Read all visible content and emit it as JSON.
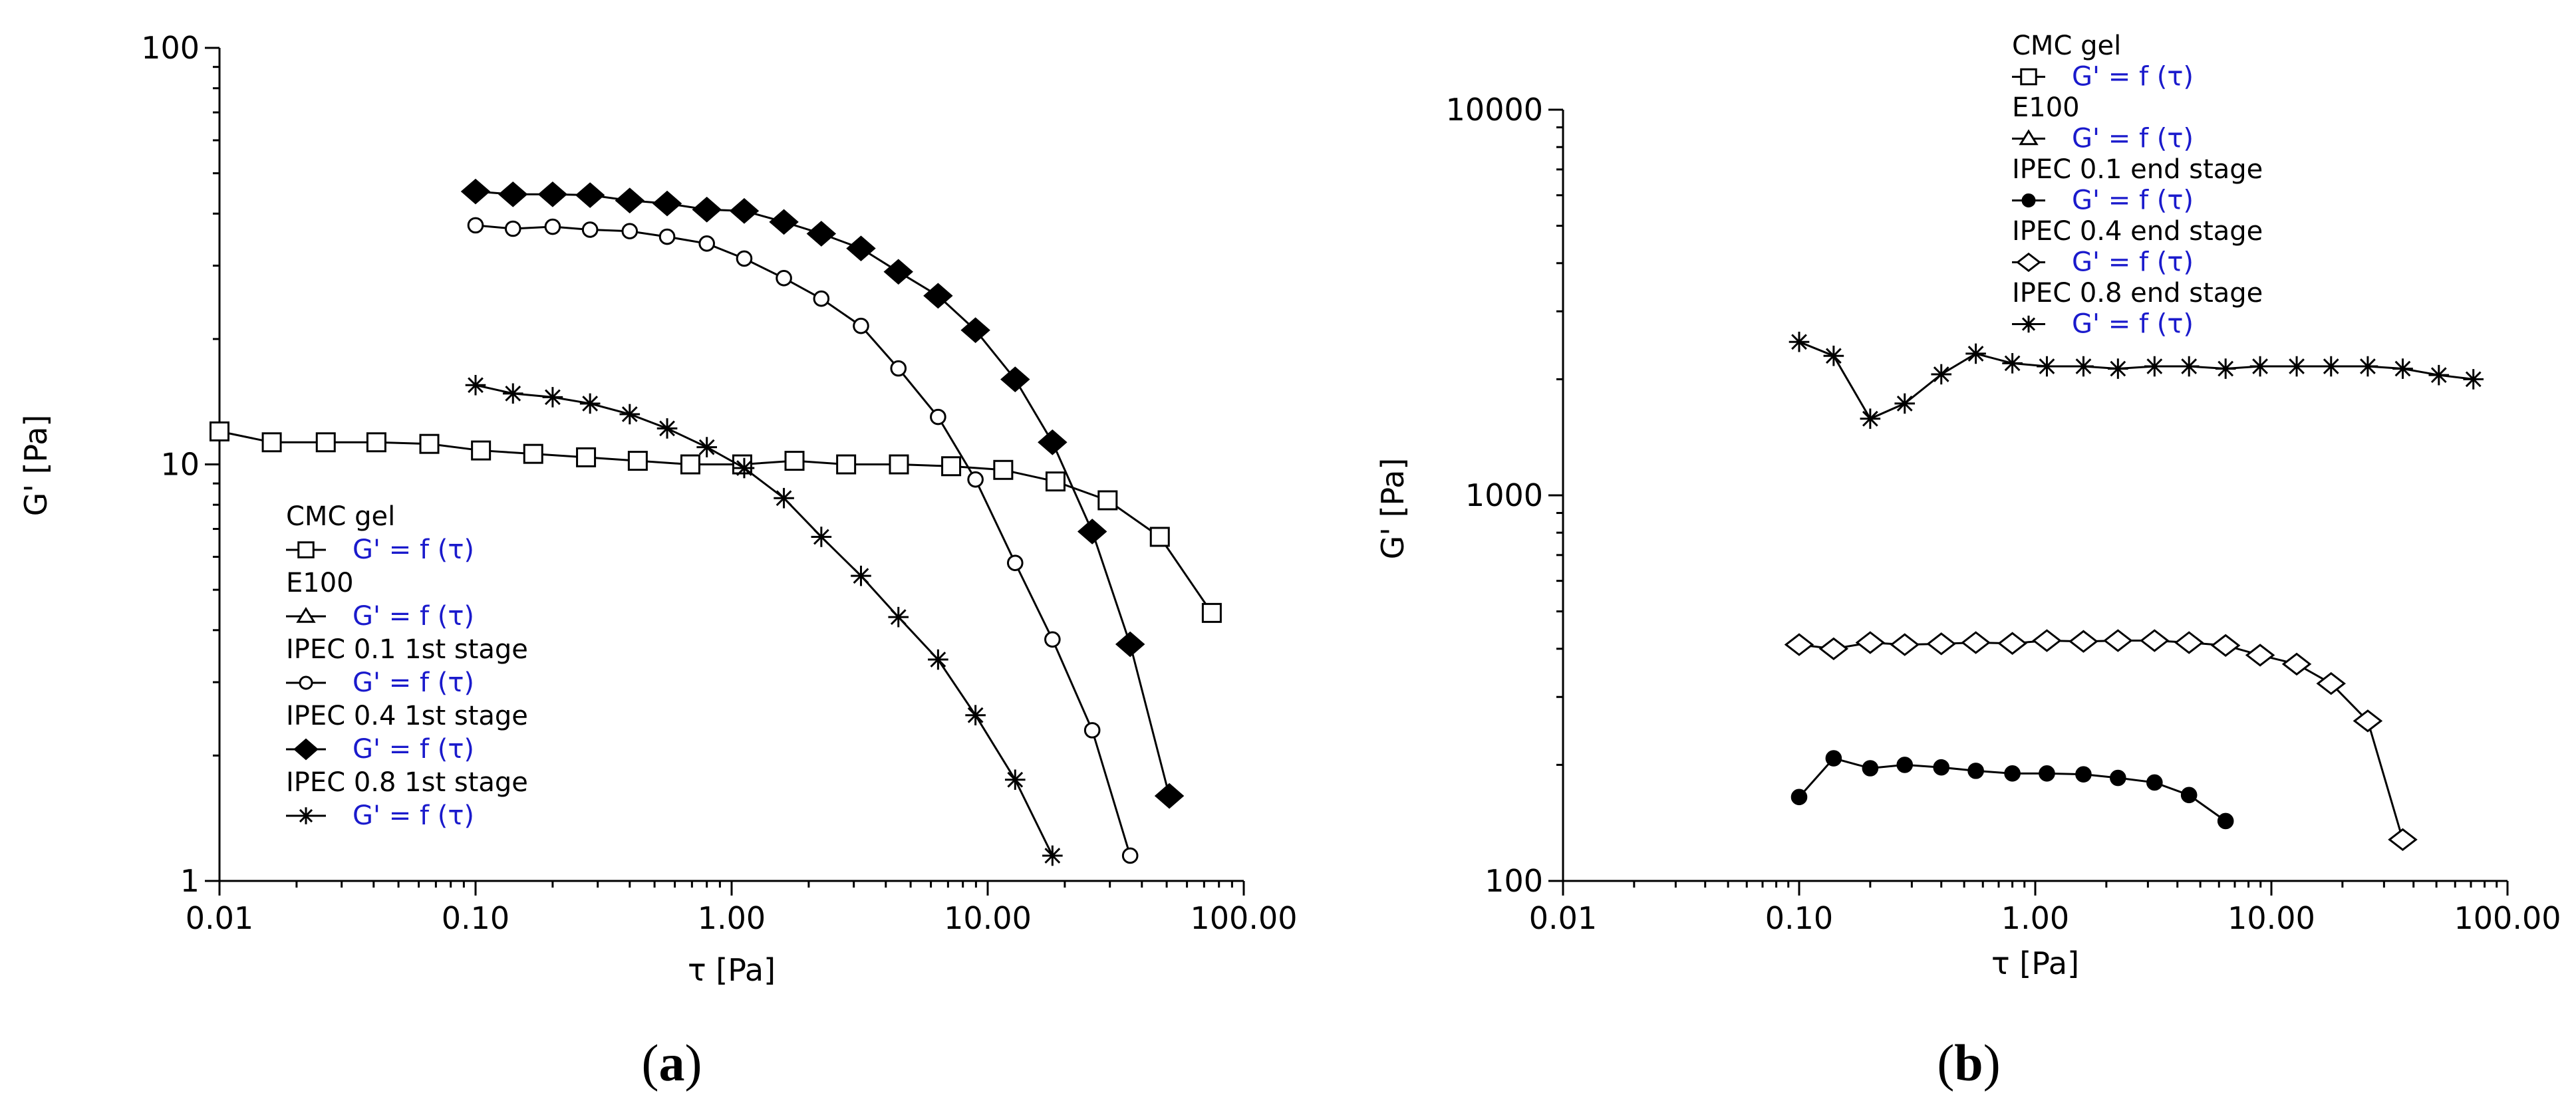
{
  "chart_data": [
    {
      "type": "scatter",
      "panel_label": "a",
      "xlabel": "τ  [Pa]",
      "ylabel": "G'  [Pa]",
      "xscale": "log",
      "yscale": "log",
      "xlim": [
        0.01,
        100
      ],
      "ylim": [
        1,
        100
      ],
      "x_ticks": [
        0.01,
        0.1,
        1,
        10,
        100
      ],
      "x_tick_labels": [
        "0.01",
        "0.10",
        "1.00",
        "10.00",
        "100.00"
      ],
      "y_ticks": [
        1,
        10,
        100
      ],
      "y_tick_labels": [
        "1",
        "10",
        "100"
      ],
      "legend_position": "left-lower",
      "legend_function_label": "G' = f (τ)",
      "series": [
        {
          "name": "CMC gel",
          "marker": "square-open",
          "x": [
            0.01,
            0.016,
            0.026,
            0.041,
            0.066,
            0.105,
            0.168,
            0.27,
            0.43,
            0.69,
            1.1,
            1.76,
            2.8,
            4.5,
            7.2,
            11.5,
            18.4,
            29.4,
            47,
            75
          ],
          "y": [
            12.0,
            11.3,
            11.3,
            11.3,
            11.2,
            10.8,
            10.6,
            10.4,
            10.2,
            10.0,
            10.0,
            10.2,
            10.0,
            10.0,
            9.9,
            9.7,
            9.1,
            8.2,
            6.7,
            4.4
          ]
        },
        {
          "name": "E100",
          "marker": "triangle-open",
          "x": [],
          "y": []
        },
        {
          "name": "IPEC 0.1 1st stage",
          "marker": "circle-open",
          "x": [
            0.1,
            0.14,
            0.2,
            0.28,
            0.4,
            0.56,
            0.8,
            1.12,
            1.6,
            2.24,
            3.2,
            4.48,
            6.4,
            8.96,
            12.8,
            17.9,
            25.6,
            36
          ],
          "y": [
            37.5,
            36.8,
            37.2,
            36.6,
            36.3,
            35.2,
            33.9,
            31.2,
            28.0,
            25.0,
            21.5,
            17.0,
            13.0,
            9.2,
            5.8,
            3.8,
            2.3,
            1.15
          ]
        },
        {
          "name": "IPEC 0.4 1st stage",
          "marker": "diamond-filled",
          "x": [
            0.1,
            0.14,
            0.2,
            0.28,
            0.4,
            0.56,
            0.8,
            1.12,
            1.6,
            2.24,
            3.2,
            4.48,
            6.4,
            8.96,
            12.8,
            17.9,
            25.6,
            36,
            51.2
          ],
          "y": [
            45.2,
            44.5,
            44.5,
            44.3,
            43.0,
            42.3,
            40.9,
            40.6,
            38.2,
            35.8,
            33.0,
            29.0,
            25.4,
            21.0,
            16.0,
            11.3,
            6.9,
            3.7,
            1.6
          ]
        },
        {
          "name": "IPEC 0.8 1st stage",
          "marker": "asterisk",
          "x": [
            0.1,
            0.14,
            0.2,
            0.28,
            0.4,
            0.56,
            0.8,
            1.12,
            1.6,
            2.24,
            3.2,
            4.48,
            6.4,
            8.96,
            12.8,
            17.9
          ],
          "y": [
            15.5,
            14.8,
            14.5,
            14.0,
            13.2,
            12.2,
            11.0,
            9.8,
            8.3,
            6.7,
            5.4,
            4.3,
            3.4,
            2.5,
            1.75,
            1.15
          ]
        }
      ]
    },
    {
      "type": "scatter",
      "panel_label": "b",
      "xlabel": "τ  [Pa]",
      "ylabel": "G'  [Pa]",
      "xscale": "log",
      "yscale": "log",
      "xlim": [
        0.01,
        100
      ],
      "ylim": [
        100,
        10000
      ],
      "x_ticks": [
        0.01,
        0.1,
        1,
        10,
        100
      ],
      "x_tick_labels": [
        "0.01",
        "0.10",
        "1.00",
        "10.00",
        "100.00"
      ],
      "y_ticks": [
        100,
        1000,
        10000
      ],
      "y_tick_labels": [
        "100",
        "1000",
        "10000"
      ],
      "legend_position": "top-right",
      "legend_function_label": "G' = f (τ)",
      "series": [
        {
          "name": "CMC gel",
          "marker": "square-open",
          "x": [],
          "y": []
        },
        {
          "name": "E100",
          "marker": "triangle-open",
          "x": [],
          "y": []
        },
        {
          "name": "IPEC 0.1 end stage",
          "marker": "circle-filled",
          "x": [
            0.1,
            0.14,
            0.2,
            0.28,
            0.4,
            0.56,
            0.8,
            1.12,
            1.6,
            2.24,
            3.2,
            4.48,
            6.4
          ],
          "y": [
            165,
            208,
            196,
            200,
            197,
            193,
            190,
            190,
            189,
            185,
            180,
            167,
            143
          ]
        },
        {
          "name": "IPEC 0.4 end stage",
          "marker": "diamond-open",
          "x": [
            0.1,
            0.14,
            0.2,
            0.28,
            0.4,
            0.56,
            0.8,
            1.12,
            1.6,
            2.24,
            3.2,
            4.48,
            6.4,
            8.96,
            12.8,
            17.9,
            25.6,
            36
          ],
          "y": [
            410,
            400,
            415,
            410,
            412,
            415,
            413,
            420,
            418,
            420,
            420,
            415,
            408,
            385,
            365,
            325,
            260,
            128
          ]
        },
        {
          "name": "IPEC 0.8 end stage",
          "marker": "asterisk",
          "x": [
            0.1,
            0.14,
            0.2,
            0.28,
            0.4,
            0.56,
            0.8,
            1.12,
            1.6,
            2.24,
            3.2,
            4.48,
            6.4,
            8.96,
            12.8,
            17.9,
            25.6,
            36,
            51.2,
            71.7
          ],
          "y": [
            2500,
            2300,
            1580,
            1730,
            2060,
            2330,
            2200,
            2160,
            2160,
            2130,
            2160,
            2160,
            2130,
            2160,
            2160,
            2160,
            2160,
            2130,
            2050,
            2000
          ]
        }
      ]
    }
  ]
}
